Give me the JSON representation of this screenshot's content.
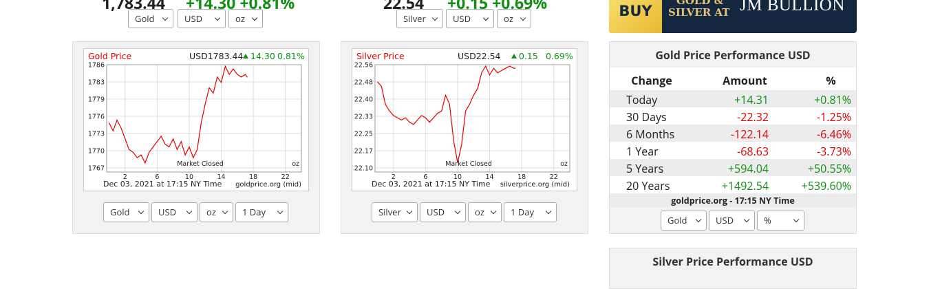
{
  "top": [
    {
      "price": "1,783.44",
      "change": "+14.30",
      "pct": "+0.81%",
      "selects": [
        "Gold",
        "USD",
        "oz"
      ]
    },
    {
      "price": "22.54",
      "change": "+0.15",
      "pct": "+0.69%",
      "selects": [
        "Silver",
        "USD",
        "oz"
      ]
    }
  ],
  "banner": {
    "buy": "BUY",
    "line1": "GOLD &",
    "line2": "SILVER AT",
    "brand": "JM BULLION"
  },
  "chart_data": [
    {
      "type": "line",
      "title": "Gold Price",
      "price": "USD1783.44",
      "change": "14.30",
      "change_pct": "0.81%",
      "x": [
        0,
        0.5,
        1,
        1.5,
        2,
        2.5,
        3,
        3.5,
        4,
        4.5,
        5,
        5.5,
        6,
        6.5,
        7,
        7.5,
        8,
        8.5,
        9,
        9.5,
        10,
        10.5,
        11,
        11.5,
        12,
        12.5,
        13,
        13.5,
        14,
        14.5,
        15,
        15.5,
        16,
        16.5,
        17,
        17.25
      ],
      "series": [
        {
          "color": "#e00000",
          "values": [
            1775.0,
            1773.5,
            1775.5,
            1774.0,
            1772.0,
            1770.0,
            1769.5,
            1768.5,
            1769.0,
            1767.5,
            1769.5,
            1770.5,
            1771.5,
            1772.5,
            1771.0,
            1770.5,
            1772.0,
            1770.0,
            1771.5,
            1769.0,
            1770.5,
            1768.5,
            1770.0,
            1775.0,
            1778.5,
            1781.5,
            1780.5,
            1783.5,
            1782.5,
            1785.5,
            1784.0,
            1785.0,
            1784.0,
            1783.5,
            1784.0,
            1783.44
          ]
        }
      ],
      "xlim": [
        -0.3,
        24
      ],
      "xticks": [
        2,
        6,
        10,
        14,
        18,
        22
      ],
      "ylim": [
        1766.6,
        1785.8
      ],
      "yticks": [
        {
          "value": 1766.6,
          "label": "1767"
        },
        {
          "value": 1769.8,
          "label": "1770"
        },
        {
          "value": 1773.0,
          "label": "1773"
        },
        {
          "value": 1776.2,
          "label": "1776"
        },
        {
          "value": 1779.4,
          "label": "1779"
        },
        {
          "value": 1782.6,
          "label": "1783"
        },
        {
          "value": 1785.8,
          "label": "1786"
        }
      ],
      "grid": true,
      "annotation": "Market Closed",
      "unit": "oz",
      "footer_left": "Dec 03, 2021 at 17:15 NY Time",
      "footer_right": "goldprice.org (mid)",
      "controls": [
        "Gold",
        "USD",
        "oz",
        "1 Day"
      ]
    },
    {
      "type": "line",
      "title": "Silver Price",
      "price": "USD22.54",
      "change": "0.15",
      "change_pct": "0.69%",
      "x": [
        0,
        0.5,
        1,
        1.5,
        2,
        2.5,
        3,
        3.5,
        4,
        4.5,
        5,
        5.5,
        6,
        6.5,
        7,
        7.5,
        8,
        8.5,
        9,
        9.5,
        10,
        10.5,
        11,
        11.5,
        12,
        12.5,
        13,
        13.5,
        14,
        14.5,
        15,
        15.5,
        16,
        16.5,
        17,
        17.25
      ],
      "series": [
        {
          "color": "#e00000",
          "values": [
            22.48,
            22.46,
            22.38,
            22.35,
            22.33,
            22.32,
            22.31,
            22.32,
            22.3,
            22.29,
            22.31,
            22.33,
            22.32,
            22.3,
            22.32,
            22.34,
            22.35,
            22.42,
            22.38,
            22.22,
            22.12,
            22.2,
            22.35,
            22.38,
            22.42,
            22.45,
            22.52,
            22.55,
            22.51,
            22.54,
            22.52,
            22.53,
            22.54,
            22.55,
            22.54,
            22.54
          ]
        }
      ],
      "xlim": [
        -0.3,
        24
      ],
      "xticks": [
        2,
        6,
        10,
        14,
        18,
        22
      ],
      "ylim": [
        22.097,
        22.556
      ],
      "yticks": [
        {
          "value": 22.097,
          "label": "22.10"
        },
        {
          "value": 22.1735,
          "label": "22.17"
        },
        {
          "value": 22.25,
          "label": "22.25"
        },
        {
          "value": 22.3265,
          "label": "22.33"
        },
        {
          "value": 22.403,
          "label": "22.40"
        },
        {
          "value": 22.4795,
          "label": "22.48"
        },
        {
          "value": 22.556,
          "label": "22.56"
        }
      ],
      "grid": true,
      "annotation": "Market Closed",
      "unit": "oz",
      "footer_left": "Dec 03, 2021 at 17:15 NY Time",
      "footer_right": "silverprice.org (mid)",
      "controls": [
        "Silver",
        "USD",
        "oz",
        "1 Day"
      ]
    }
  ],
  "performance": {
    "title": "Gold Price Performance USD",
    "columns": [
      "Change",
      "Amount",
      "%"
    ],
    "rows": [
      [
        "Today",
        "+14.31",
        "+0.81%"
      ],
      [
        "30 Days",
        "-22.32",
        "-1.25%"
      ],
      [
        "6 Months",
        "-122.14",
        "-6.46%"
      ],
      [
        "1 Year",
        "-68.63",
        "-3.73%"
      ],
      [
        "5 Years",
        "+594.04",
        "+50.55%"
      ],
      [
        "20 Years",
        "+1492.54",
        "+539.60%"
      ]
    ],
    "footer": "goldprice.org - 17:15 NY Time",
    "controls": [
      "Gold",
      "USD",
      "%"
    ]
  },
  "silver_performance": {
    "title": "Silver Price Performance USD"
  }
}
